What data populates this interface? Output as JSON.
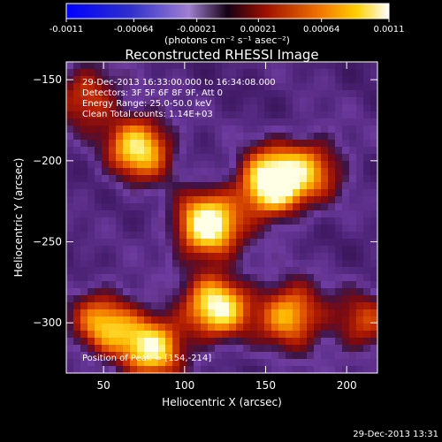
{
  "chart_data": {
    "type": "heatmap",
    "title": "Reconstructed RHESSI Image",
    "colorbar": {
      "tick_labels": [
        "-0.0011",
        "-0.00064",
        "-0.00021",
        "0.00021",
        "0.00064",
        "0.0011"
      ],
      "range": [
        -0.0011,
        0.0011
      ],
      "unit_label": "(photons cm⁻² s⁻¹ asec⁻²)"
    },
    "xlabel": "Heliocentric X (arcsec)",
    "ylabel": "Heliocentric Y (arcsec)",
    "xlim": [
      27,
      219
    ],
    "ylim": [
      -331,
      -139
    ],
    "x_ticks": [
      50,
      100,
      150,
      200
    ],
    "y_ticks": [
      -150,
      -200,
      -250,
      -300
    ],
    "annotations": [
      "29-Dec-2013 16:33:00.000 to 16:34:08.000",
      "Detectors: 3F 5F 6F 8F 9F, Att 0",
      "Energy Range: 25.0-50.0 keV",
      "Clean     Total counts: 1.14E+03"
    ],
    "peak_label": "Position of Peak = [154,-214]",
    "peak": [
      154,
      -214
    ],
    "sources": [
      {
        "x": 154,
        "y": -214,
        "peak": 1.0
      },
      {
        "x": 114,
        "y": -240,
        "peak": 0.9
      },
      {
        "x": 72,
        "y": -192,
        "peak": 0.75
      },
      {
        "x": 180,
        "y": -204,
        "peak": 0.45
      },
      {
        "x": 120,
        "y": -290,
        "peak": 0.8
      },
      {
        "x": 80,
        "y": -315,
        "peak": 0.75
      },
      {
        "x": 165,
        "y": -295,
        "peak": 0.65
      },
      {
        "x": 50,
        "y": -300,
        "peak": 0.6
      },
      {
        "x": 210,
        "y": -300,
        "peak": 0.4
      },
      {
        "x": 40,
        "y": -160,
        "peak": 0.45
      }
    ]
  },
  "footer": {
    "timestamp": "29-Dec-2013 13:31"
  }
}
